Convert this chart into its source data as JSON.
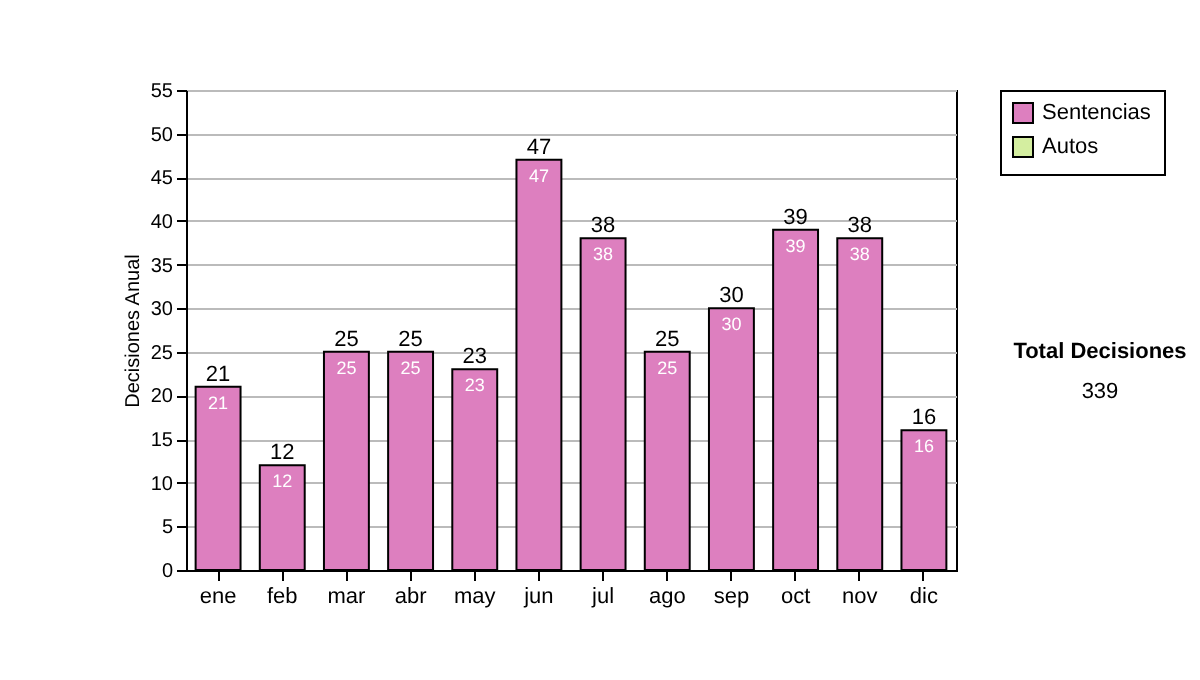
{
  "chart_data": {
    "type": "bar",
    "stacked": true,
    "ylabel": "Decisiones Anual",
    "categories": [
      "ene",
      "feb",
      "mar",
      "abr",
      "may",
      "jun",
      "jul",
      "ago",
      "sep",
      "oct",
      "nov",
      "dic"
    ],
    "series": [
      {
        "name": "Sentencias",
        "color": "#dd7fbf",
        "values": [
          21,
          12,
          25,
          25,
          23,
          47,
          38,
          25,
          30,
          39,
          38,
          16
        ]
      },
      {
        "name": "Autos",
        "color": "#d4eea0",
        "values": [
          null,
          null,
          null,
          null,
          null,
          null,
          null,
          null,
          null,
          null,
          null,
          null
        ]
      }
    ],
    "data_labels": true,
    "totals": [
      "21",
      "12",
      "25",
      "25",
      "23",
      "47",
      "38",
      "25",
      "30",
      "39",
      "38",
      "16"
    ],
    "ylim": [
      0,
      55
    ],
    "yticks": [
      0,
      5,
      10,
      15,
      20,
      25,
      30,
      35,
      40,
      45,
      50,
      55
    ],
    "grid": "y",
    "legend": "right",
    "annotations": [
      "Total Decisiones",
      "339"
    ]
  }
}
